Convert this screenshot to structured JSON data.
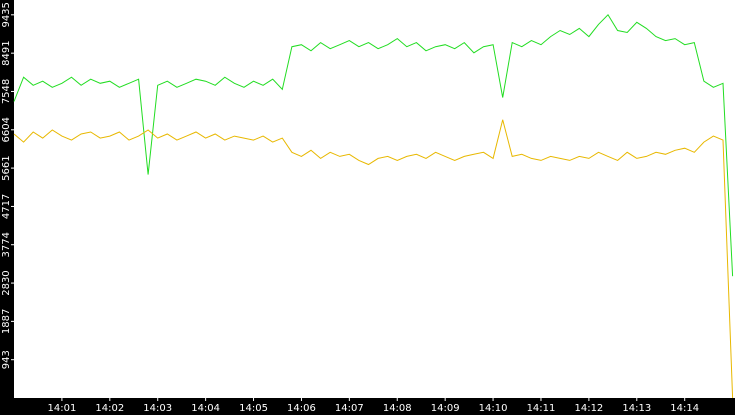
{
  "chart_data": {
    "type": "line",
    "x": [
      0,
      0.2,
      0.4,
      0.6,
      0.8,
      1,
      1.2,
      1.4,
      1.6,
      1.8,
      2,
      2.2,
      2.4,
      2.6,
      2.8,
      3,
      3.2,
      3.4,
      3.6,
      3.8,
      4,
      4.2,
      4.4,
      4.6,
      4.8,
      5,
      5.2,
      5.4,
      5.6,
      5.8,
      6,
      6.2,
      6.4,
      6.6,
      6.8,
      7,
      7.2,
      7.4,
      7.6,
      7.8,
      8,
      8.2,
      8.4,
      8.6,
      8.8,
      9,
      9.2,
      9.4,
      9.6,
      9.8,
      10,
      10.2,
      10.4,
      10.6,
      10.8,
      11,
      11.2,
      11.4,
      11.6,
      11.8,
      12,
      12.2,
      12.4,
      12.6,
      12.8,
      13,
      13.2,
      13.4,
      13.6,
      13.8,
      14,
      14.2,
      14.4,
      14.6,
      14.8,
      15
    ],
    "series": [
      {
        "color": "#22dd22",
        "values": [
          7300,
          7900,
          7700,
          7800,
          7650,
          7750,
          7900,
          7700,
          7850,
          7750,
          7800,
          7650,
          7750,
          7850,
          5500,
          7700,
          7800,
          7650,
          7750,
          7850,
          7800,
          7700,
          7900,
          7750,
          7650,
          7800,
          7700,
          7850,
          7600,
          8650,
          8700,
          8550,
          8750,
          8600,
          8700,
          8800,
          8650,
          8750,
          8600,
          8700,
          8850,
          8650,
          8750,
          8550,
          8650,
          8700,
          8600,
          8750,
          8500,
          8650,
          8700,
          7400,
          8750,
          8650,
          8800,
          8700,
          8900,
          9050,
          8950,
          9100,
          8900,
          9200,
          9435,
          9050,
          9000,
          9250,
          9100,
          8900,
          8800,
          8850,
          8700,
          8750,
          7800,
          7650,
          7750,
          3000
        ]
      },
      {
        "color": "#e8b800",
        "values": [
          6500,
          6300,
          6550,
          6400,
          6600,
          6450,
          6350,
          6500,
          6550,
          6400,
          6450,
          6550,
          6350,
          6450,
          6600,
          6400,
          6500,
          6350,
          6450,
          6550,
          6400,
          6500,
          6350,
          6450,
          6400,
          6350,
          6450,
          6300,
          6400,
          6050,
          5950,
          6100,
          5900,
          6050,
          5950,
          6000,
          5850,
          5750,
          5900,
          5950,
          5850,
          5950,
          6000,
          5900,
          6050,
          5950,
          5850,
          5950,
          6000,
          6050,
          5900,
          6850,
          5950,
          6000,
          5900,
          5850,
          5950,
          5900,
          5850,
          5950,
          5900,
          6050,
          5950,
          5850,
          6050,
          5900,
          5950,
          6050,
          6000,
          6100,
          6150,
          6050,
          6300,
          6450,
          6350,
          0
        ]
      }
    ],
    "xlim": [
      0,
      15.05
    ],
    "xticks": [
      {
        "value": 1,
        "label": "14:01"
      },
      {
        "value": 2,
        "label": "14:02"
      },
      {
        "value": 3,
        "label": "14:03"
      },
      {
        "value": 4,
        "label": "14:04"
      },
      {
        "value": 5,
        "label": "14:05"
      },
      {
        "value": 6,
        "label": "14:06"
      },
      {
        "value": 7,
        "label": "14:07"
      },
      {
        "value": 8,
        "label": "14:08"
      },
      {
        "value": 9,
        "label": "14:09"
      },
      {
        "value": 10,
        "label": "14:10"
      },
      {
        "value": 11,
        "label": "14:11"
      },
      {
        "value": 12,
        "label": "14:12"
      },
      {
        "value": 13,
        "label": "14:13"
      },
      {
        "value": 14,
        "label": "14:14"
      }
    ],
    "ylim": [
      0,
      9800
    ],
    "yticks": [
      943,
      1887,
      2830,
      3774,
      4717,
      5661,
      6604,
      7548,
      8491,
      9435
    ]
  }
}
